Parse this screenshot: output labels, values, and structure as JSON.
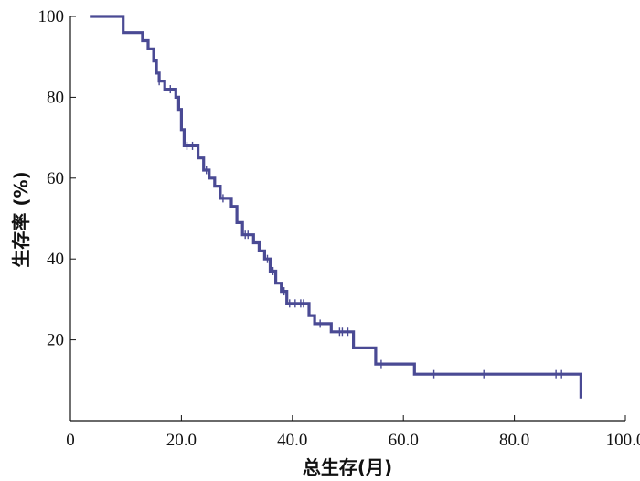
{
  "chart_data": {
    "type": "line",
    "title": "",
    "xlabel": "总生存(月)",
    "ylabel": "生存率 (%)",
    "xlim": [
      0,
      100
    ],
    "ylim": [
      0,
      100
    ],
    "x_ticks": [
      "0",
      "20.0",
      "40.0",
      "60.0",
      "80.0",
      "100.0"
    ],
    "y_ticks": [
      "20",
      "40",
      "60",
      "80",
      "100"
    ],
    "grid": false,
    "legend": "none",
    "line_color": "#4a4a94",
    "series": [
      {
        "step": [
          [
            3.5,
            100
          ],
          [
            9.5,
            100
          ],
          [
            9.5,
            96
          ],
          [
            13,
            96
          ],
          [
            13,
            94
          ],
          [
            14,
            94
          ],
          [
            14,
            92
          ],
          [
            15,
            92
          ],
          [
            15,
            89
          ],
          [
            15.5,
            89
          ],
          [
            15.5,
            86
          ],
          [
            16,
            86
          ],
          [
            16,
            84
          ],
          [
            17,
            84
          ],
          [
            17,
            82
          ],
          [
            19,
            82
          ],
          [
            19,
            80
          ],
          [
            19.5,
            80
          ],
          [
            19.5,
            77
          ],
          [
            20,
            77
          ],
          [
            20,
            72
          ],
          [
            20.5,
            72
          ],
          [
            20.5,
            68
          ],
          [
            23,
            68
          ],
          [
            23,
            65
          ],
          [
            24,
            65
          ],
          [
            24,
            62
          ],
          [
            25,
            62
          ],
          [
            25,
            60
          ],
          [
            26,
            60
          ],
          [
            26,
            58
          ],
          [
            27,
            58
          ],
          [
            27,
            55
          ],
          [
            29,
            55
          ],
          [
            29,
            53
          ],
          [
            30,
            53
          ],
          [
            30,
            49
          ],
          [
            31,
            49
          ],
          [
            31,
            46
          ],
          [
            33,
            46
          ],
          [
            33,
            44
          ],
          [
            34,
            44
          ],
          [
            34,
            42
          ],
          [
            35,
            42
          ],
          [
            35,
            40
          ],
          [
            36,
            40
          ],
          [
            36,
            37
          ],
          [
            37,
            37
          ],
          [
            37,
            34
          ],
          [
            38,
            34
          ],
          [
            38,
            32
          ],
          [
            39,
            32
          ],
          [
            39,
            29
          ],
          [
            43,
            29
          ],
          [
            43,
            26
          ],
          [
            44,
            26
          ],
          [
            44,
            24
          ],
          [
            47,
            24
          ],
          [
            47,
            22
          ],
          [
            51,
            22
          ],
          [
            51,
            18
          ],
          [
            55,
            18
          ],
          [
            55,
            14
          ],
          [
            62,
            14
          ],
          [
            62,
            11.5
          ],
          [
            92,
            11.5
          ],
          [
            92,
            5.5
          ]
        ],
        "censored": [
          [
            16,
            84
          ],
          [
            18,
            82
          ],
          [
            21,
            68
          ],
          [
            22,
            68
          ],
          [
            24.5,
            62
          ],
          [
            27.5,
            55
          ],
          [
            31.5,
            46
          ],
          [
            32,
            46
          ],
          [
            35.5,
            40
          ],
          [
            36.5,
            37
          ],
          [
            38.5,
            32
          ],
          [
            39.5,
            29
          ],
          [
            40.5,
            29
          ],
          [
            41.5,
            29
          ],
          [
            42,
            29
          ],
          [
            45,
            24
          ],
          [
            48.5,
            22
          ],
          [
            49,
            22
          ],
          [
            50,
            22
          ],
          [
            56,
            14
          ],
          [
            65.5,
            11.5
          ],
          [
            74.5,
            11.5
          ],
          [
            87.5,
            11.5
          ],
          [
            88.5,
            11.5
          ]
        ]
      }
    ]
  }
}
